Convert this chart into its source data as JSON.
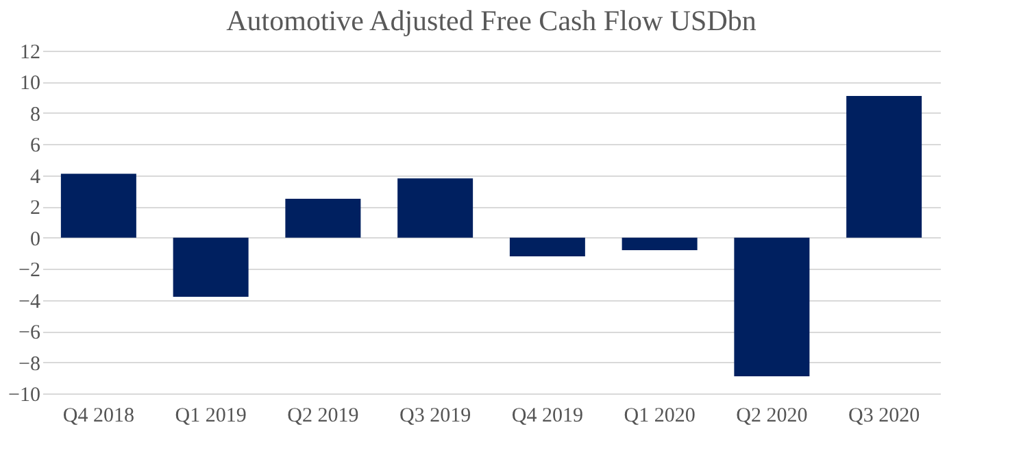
{
  "chart_data": {
    "type": "bar",
    "title": "Automotive Adjusted Free Cash Flow USDbn",
    "categories": [
      "Q4 2018",
      "Q1 2019",
      "Q2 2019",
      "Q3 2019",
      "Q4 2019",
      "Q1 2020",
      "Q2 2020",
      "Q3 2020"
    ],
    "values": [
      4.1,
      -3.8,
      2.5,
      3.8,
      -1.2,
      -0.8,
      -8.9,
      9.1
    ],
    "color": "#002060",
    "ylim": [
      -10,
      12
    ],
    "yticks": [
      -10,
      -8,
      -6,
      -4,
      -2,
      0,
      2,
      4,
      6,
      8,
      10,
      12
    ],
    "grid": "y"
  }
}
